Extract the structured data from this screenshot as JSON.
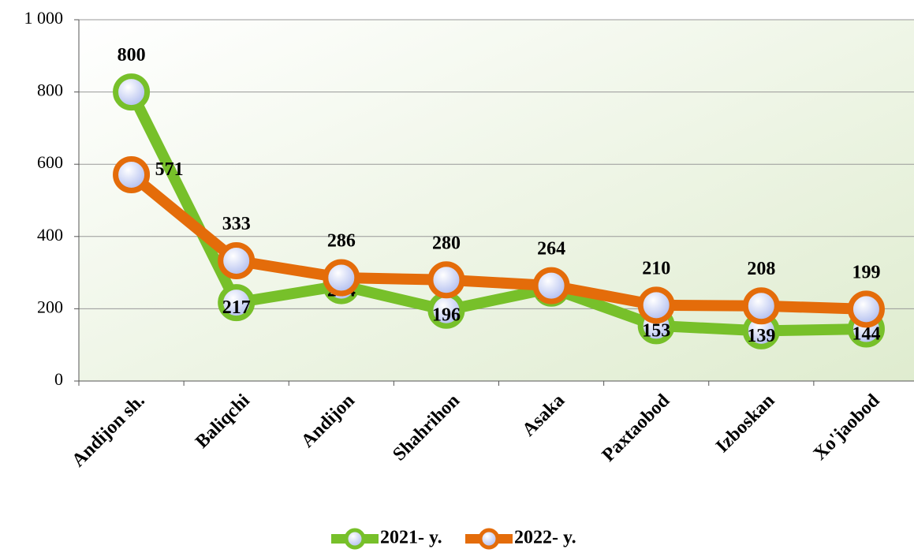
{
  "chart_data": {
    "type": "line",
    "categories": [
      "Andijon sh.",
      "Baliqchi",
      "Andijon",
      "Shahrihon",
      "Asaka",
      "Paxtaobod",
      "Izboskan",
      "Xo'jaobod"
    ],
    "series": [
      {
        "name": "2021- y.",
        "color": "#77c02a",
        "values": [
          800,
          217,
          264,
          196,
          257,
          153,
          139,
          144
        ]
      },
      {
        "name": "2022- y.",
        "color": "#e46c0a",
        "values": [
          571,
          333,
          286,
          280,
          264,
          210,
          208,
          199
        ]
      }
    ],
    "ylim": [
      0,
      1000
    ],
    "yticks": [
      0,
      200,
      400,
      600,
      800,
      {
        "value": 1000,
        "label": "1 000"
      }
    ],
    "grid": true,
    "legend": "bottom"
  }
}
